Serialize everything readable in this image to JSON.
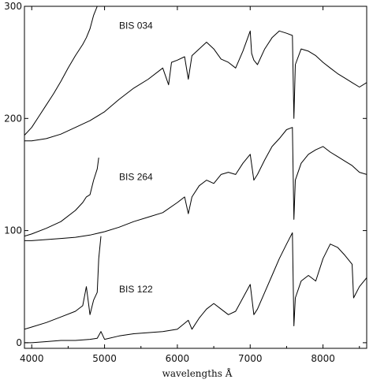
{
  "chart_data": {
    "type": "line",
    "title": "",
    "xlabel": "wavelengths Å",
    "ylabel": "",
    "xlim": [
      3900,
      8600
    ],
    "ylim": [
      -5,
      300
    ],
    "xticks": [
      4000,
      5000,
      6000,
      7000,
      8000
    ],
    "yticks": [
      0,
      100,
      200,
      300
    ],
    "grid": false,
    "legend": "none",
    "series_labels": [
      {
        "text": "BIS 034",
        "x": 5200,
        "y": 280
      },
      {
        "text": "BIS 264",
        "x": 5200,
        "y": 145
      },
      {
        "text": "BIS 122",
        "x": 5200,
        "y": 45
      }
    ],
    "series": [
      {
        "x": [
          3900,
          4000,
          4100,
          4200,
          4300,
          4400,
          4500,
          4600,
          4700,
          4750,
          4800,
          4850,
          4900,
          4950
        ],
        "y": [
          185,
          192,
          202,
          212,
          222,
          233,
          245,
          256,
          266,
          272,
          280,
          292,
          300,
          312
        ]
      },
      {
        "x": [
          3900,
          4000,
          4200,
          4400,
          4600,
          4800,
          5000,
          5200,
          5400,
          5600,
          5800,
          5880,
          5920,
          6000,
          6100,
          6150,
          6200,
          6300,
          6400,
          6500,
          6600,
          6700,
          6800,
          6900,
          7000,
          7020,
          7050,
          7100,
          7200,
          7300,
          7400,
          7500,
          7580,
          7600,
          7620,
          7700,
          7800,
          7900,
          8000,
          8100,
          8200,
          8300,
          8400,
          8500,
          8600
        ],
        "y": [
          180,
          180,
          182,
          186,
          192,
          198,
          206,
          217,
          227,
          235,
          245,
          230,
          250,
          252,
          255,
          235,
          256,
          262,
          268,
          262,
          253,
          250,
          245,
          260,
          278,
          258,
          252,
          248,
          262,
          272,
          278,
          276,
          274,
          200,
          248,
          262,
          260,
          256,
          250,
          245,
          240,
          236,
          232,
          228,
          232
        ]
      },
      {
        "x": [
          3900,
          4000,
          4200,
          4400,
          4600,
          4700,
          4750,
          4800,
          4850,
          4900,
          4920
        ],
        "y": [
          95,
          97,
          102,
          108,
          118,
          125,
          130,
          132,
          145,
          155,
          165
        ]
      },
      {
        "x": [
          3900,
          4000,
          4200,
          4400,
          4600,
          4800,
          5000,
          5200,
          5400,
          5600,
          5800,
          6000,
          6100,
          6150,
          6200,
          6300,
          6400,
          6500,
          6600,
          6700,
          6800,
          6900,
          7000,
          7050,
          7100,
          7200,
          7300,
          7400,
          7500,
          7580,
          7600,
          7620,
          7700,
          7800,
          7900,
          8000,
          8100,
          8200,
          8300,
          8400,
          8500,
          8600
        ],
        "y": [
          91,
          91,
          92,
          93,
          94,
          96,
          99,
          103,
          108,
          112,
          116,
          125,
          130,
          115,
          130,
          140,
          145,
          142,
          150,
          152,
          150,
          160,
          168,
          145,
          150,
          163,
          175,
          182,
          190,
          192,
          110,
          145,
          160,
          168,
          172,
          175,
          170,
          166,
          162,
          158,
          152,
          150
        ]
      },
      {
        "x": [
          3900,
          4000,
          4200,
          4400,
          4600,
          4700,
          4750,
          4800,
          4850,
          4900,
          4920,
          4950
        ],
        "y": [
          12,
          14,
          18,
          23,
          28,
          33,
          50,
          25,
          38,
          45,
          75,
          95
        ]
      },
      {
        "x": [
          3900,
          4000,
          4200,
          4400,
          4600,
          4800,
          4900,
          4950,
          5000,
          5200,
          5400,
          5600,
          5800,
          6000,
          6150,
          6200,
          6300,
          6400,
          6500,
          6600,
          6700,
          6800,
          7000,
          7050,
          7100,
          7200,
          7300,
          7400,
          7500,
          7580,
          7600,
          7620,
          7700,
          7800,
          7900,
          8000,
          8100,
          8200,
          8300,
          8400,
          8420,
          8500,
          8600
        ],
        "y": [
          0,
          0,
          1,
          2,
          2,
          3,
          4,
          10,
          3,
          6,
          8,
          9,
          10,
          12,
          20,
          12,
          22,
          30,
          35,
          30,
          25,
          28,
          52,
          25,
          30,
          45,
          60,
          75,
          88,
          98,
          15,
          40,
          55,
          60,
          55,
          75,
          88,
          85,
          78,
          70,
          40,
          50,
          58
        ]
      }
    ]
  }
}
